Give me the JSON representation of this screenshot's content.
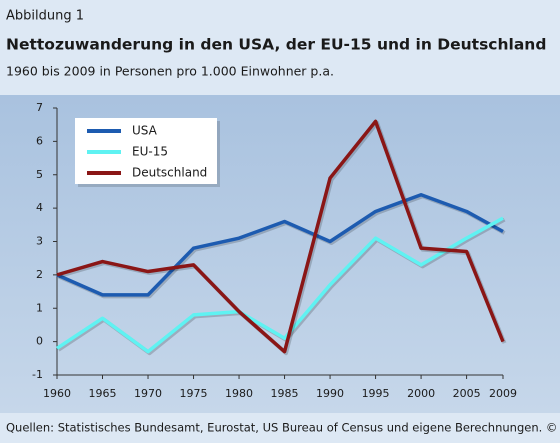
{
  "chart_data": {
    "type": "line",
    "caption": "Abbildung 1",
    "title": "Nettozuwanderung in den USA, der EU-15 und in Deutschland",
    "subtitle": "1960 bis 2009 in Personen pro 1.000 Einwohner p.a.",
    "source": "Quellen: Statistisches Bundesamt, Eurostat, US Bureau of Census und eigene Berechnungen. © IAB",
    "x": [
      1960,
      1965,
      1970,
      1975,
      1980,
      1985,
      1990,
      1995,
      2000,
      2005,
      2009
    ],
    "series": [
      {
        "name": "USA",
        "color": "#1d5bb0",
        "values": [
          2.0,
          1.4,
          1.4,
          2.8,
          3.1,
          3.6,
          3.0,
          3.9,
          4.4,
          3.9,
          3.3
        ]
      },
      {
        "name": "EU-15",
        "color": "#5ff2f2",
        "values": [
          -0.2,
          0.7,
          -0.3,
          0.8,
          0.9,
          0.1,
          1.7,
          3.1,
          2.3,
          3.1,
          3.7
        ]
      },
      {
        "name": "Deutschland",
        "color": "#8a1616",
        "values": [
          2.0,
          2.4,
          2.1,
          2.3,
          0.9,
          -0.3,
          4.9,
          6.6,
          2.8,
          2.7,
          0.0
        ]
      }
    ],
    "xlim": [
      1960,
      2009
    ],
    "xticks": [
      1960,
      1965,
      1970,
      1975,
      1980,
      1985,
      1990,
      1995,
      2000,
      2005,
      2009
    ],
    "ylim": [
      -1,
      7
    ],
    "yticks": [
      -1,
      0,
      1,
      2,
      3,
      4,
      5,
      6,
      7
    ],
    "legend": "top-left",
    "grid": false
  }
}
